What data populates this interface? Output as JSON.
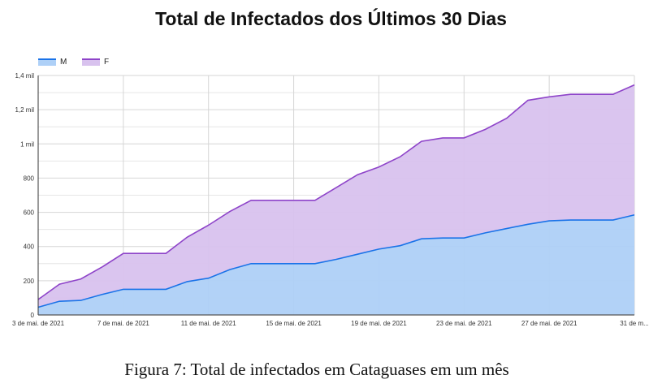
{
  "chart_data": {
    "type": "area",
    "stacked": true,
    "title": "Total de Infectados dos Últimos 30 Dias",
    "caption": "Figura 7:  Total de infectados em Cataguases em um mês",
    "xlabel": "",
    "ylabel": "",
    "x": [
      "3 de mai. de 2021",
      "4 de mai. de 2021",
      "5 de mai. de 2021",
      "6 de mai. de 2021",
      "7 de mai. de 2021",
      "8 de mai. de 2021",
      "9 de mai. de 2021",
      "10 de mai. de 2021",
      "11 de mai. de 2021",
      "12 de mai. de 2021",
      "13 de mai. de 2021",
      "14 de mai. de 2021",
      "15 de mai. de 2021",
      "16 de mai. de 2021",
      "17 de mai. de 2021",
      "18 de mai. de 2021",
      "19 de mai. de 2021",
      "20 de mai. de 2021",
      "21 de mai. de 2021",
      "22 de mai. de 2021",
      "23 de mai. de 2021",
      "24 de mai. de 2021",
      "25 de mai. de 2021",
      "26 de mai. de 2021",
      "27 de mai. de 2021",
      "28 de mai. de 2021",
      "29 de mai. de 2021",
      "30 de mai. de 2021",
      "31 de mai. de 2021"
    ],
    "x_tick_labels": [
      "3 de mai. de 2021",
      "7 de mai. de 2021",
      "11 de mai. de 2021",
      "15 de mai. de 2021",
      "19 de mai. de 2021",
      "23 de mai. de 2021",
      "27 de mai. de 2021",
      "31 de m..."
    ],
    "y_tick_labels": [
      "0",
      "200",
      "400",
      "600",
      "800",
      "1 mil",
      "1,2 mil",
      "1,4 mil"
    ],
    "ylim": [
      0,
      1400
    ],
    "grid": true,
    "legend": "top-left",
    "series": [
      {
        "name": "M",
        "color": "#1a73e8",
        "fill": "#aed0f7",
        "values": [
          45,
          80,
          85,
          120,
          150,
          150,
          150,
          195,
          215,
          265,
          300,
          300,
          300,
          300,
          325,
          355,
          385,
          405,
          445,
          450,
          450,
          480,
          505,
          530,
          550,
          555,
          555,
          555,
          585
        ]
      },
      {
        "name": "F",
        "color": "#8e44c9",
        "fill": "#d8c2ee",
        "values": [
          45,
          100,
          125,
          160,
          210,
          210,
          210,
          260,
          310,
          340,
          370,
          370,
          370,
          370,
          420,
          465,
          480,
          520,
          570,
          585,
          585,
          605,
          645,
          725,
          725,
          735,
          735,
          735,
          760
        ]
      }
    ]
  }
}
